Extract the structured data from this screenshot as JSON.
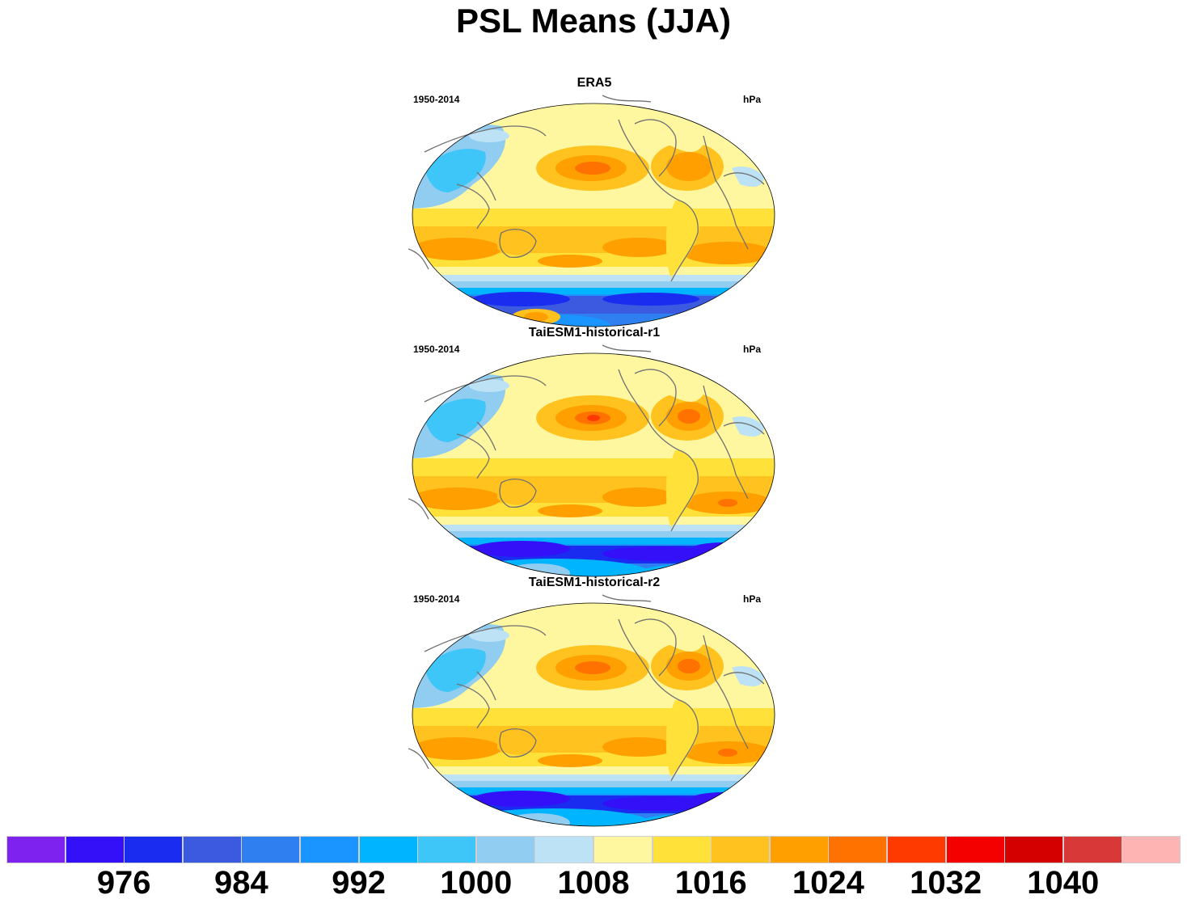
{
  "title": "PSL Means (JJA)",
  "panels": [
    {
      "title": "ERA5",
      "left_label": "1950-2014",
      "right_label": "hPa"
    },
    {
      "title": "TaiESM1-historical-r1",
      "left_label": "1950-2014",
      "right_label": "hPa"
    },
    {
      "title": "TaiESM1-historical-r2",
      "left_label": "1950-2014",
      "right_label": "hPa"
    }
  ],
  "colorbar": {
    "colors": [
      "#7e22f0",
      "#3310f8",
      "#1a2cf0",
      "#3c5ae0",
      "#2f7ff0",
      "#1a94ff",
      "#00b4ff",
      "#3fc6f8",
      "#90cdf0",
      "#bde2f5",
      "#fff7a0",
      "#ffe13a",
      "#ffc21f",
      "#ff9f00",
      "#ff7200",
      "#ff3a00",
      "#f50000",
      "#d40000",
      "#d83838",
      "#ffb4b4"
    ],
    "labels": [
      "976",
      "984",
      "992",
      "1000",
      "1008",
      "1016",
      "1024",
      "1032",
      "1040"
    ]
  },
  "chart_data": {
    "type": "heatmap",
    "title": "PSL Means (JJA)",
    "units": "hPa",
    "period": "1950-2014",
    "panels": [
      "ERA5",
      "TaiESM1-historical-r1",
      "TaiESM1-historical-r2"
    ],
    "levels": [
      976,
      980,
      984,
      988,
      992,
      996,
      1000,
      1004,
      1008,
      1012,
      1016,
      1020,
      1024,
      1028,
      1032,
      1036,
      1040,
      1044
    ]
  }
}
